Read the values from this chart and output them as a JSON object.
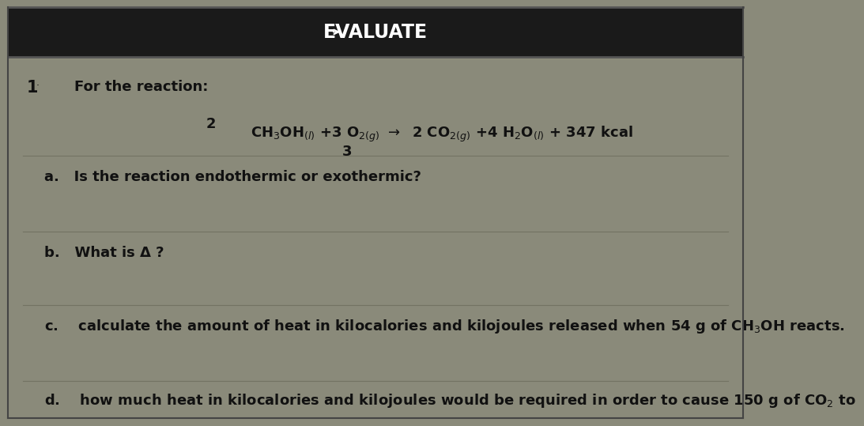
{
  "title": "EVALUATE",
  "background_color": "#8a8a7a",
  "header_bg": "#1a1a1a",
  "header_text_color": "#ffffff",
  "body_bg": "#8a8a7a",
  "bold_text_color": "#111111",
  "question_number": "1",
  "question_intro": "For the reaction:",
  "coeff_2": "2",
  "coeff_3": "3",
  "part_a": "a.   Is the reaction endothermic or exothermic?",
  "part_b": "b.   What is Δ ?",
  "part_c": "c.    calculate the amount of heat in kilocalories and kilojoules released when 54 g of CH₃OH reacts.",
  "part_d": "d.    how much heat in kilocalories and kilojoules would be required in order to cause 150 g of CO₂ to",
  "font_size_title": 17,
  "font_size_body": 13,
  "font_size_reaction": 13,
  "font_size_question_num": 15,
  "separator_color": "#6a6a5a",
  "border_color": "#444444"
}
